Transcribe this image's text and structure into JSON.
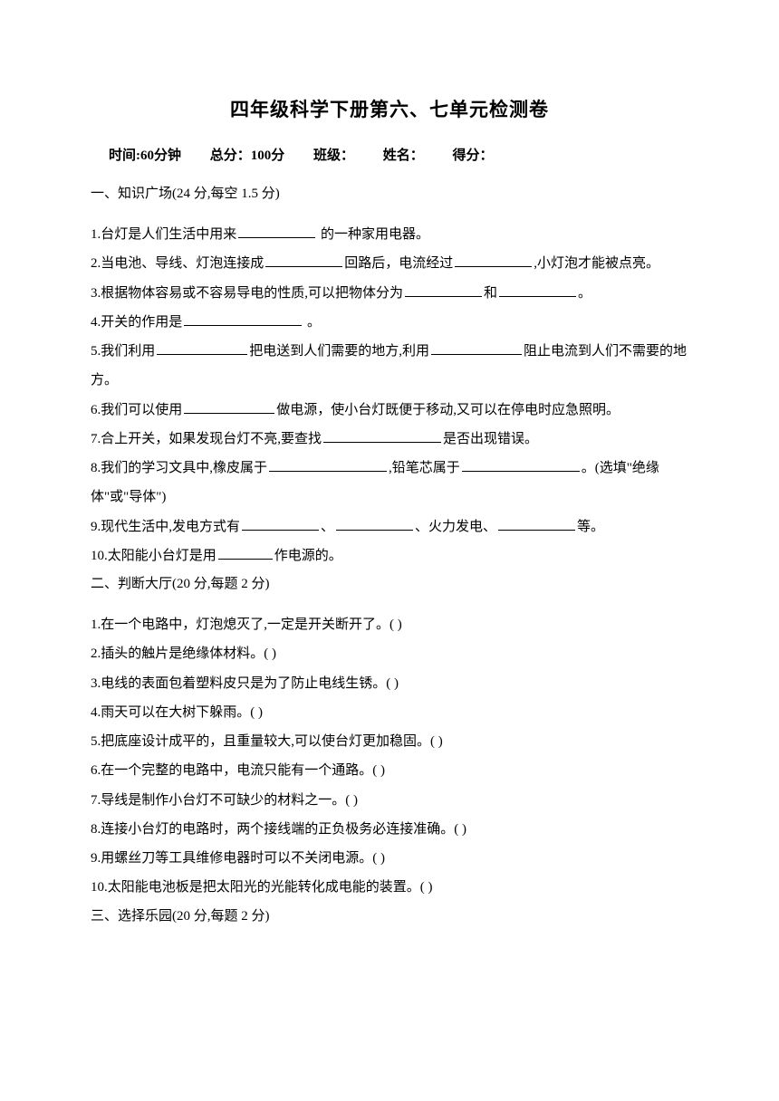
{
  "title": "四年级科学下册第六、七单元检测卷",
  "meta": {
    "time_label": "时间:60分钟",
    "total_label": "总分：100分",
    "class_label": "班级：",
    "name_label": "姓名：",
    "score_label": "得分："
  },
  "section1": {
    "header": "一、知识广场(24 分,每空 1.5 分)",
    "q1_a": "1.台灯是人们生活中用来",
    "q1_b": " 的一种家用电器。",
    "q2_a": "2.当电池、导线、灯泡连接成",
    "q2_b": "回路后，电流经过",
    "q2_c": ",小灯泡才能被点亮。",
    "q3_a": "3.根据物体容易或不容易导电的性质,可以把物体分为",
    "q3_b": "和",
    "q3_c": "。",
    "q4_a": "4.开关的作用是",
    "q4_b": " 。",
    "q5_a": "5.我们利用",
    "q5_b": "把电送到人们需要的地方,利用",
    "q5_c": "阻止电流到人们不需要的地方。",
    "q6_a": "6.我们可以使用",
    "q6_b": "做电源，使小台灯既便于移动,又可以在停电时应急照明。",
    "q7_a": "7.合上开关，如果发现台灯不亮,要查找",
    "q7_b": "是否出现错误。",
    "q8_a": "8.我们的学习文具中,橡皮属于",
    "q8_b": ",铅笔芯属于",
    "q8_c": "。(选填\"绝缘体\"或\"导体\")",
    "q9_a": "9.现代生活中,发电方式有",
    "q9_b": "、",
    "q9_c": "、火力发电、",
    "q9_d": "等。",
    "q10_a": "10.太阳能小台灯是用",
    "q10_b": "作电源的。"
  },
  "section2": {
    "header": "二、判断大厅(20 分,每题 2 分)",
    "q1": "1.在一个电路中，灯泡熄灭了,一定是开关断开了。( )",
    "q2": "2.插头的触片是绝缘体材料。(   )",
    "q3": "3.电线的表面包着塑料皮只是为了防止电线生锈。(    )",
    "q4": "4.雨天可以在大树下躲雨。(    )",
    "q5": "5.把底座设计成平的，且重量较大,可以使台灯更加稳固。(    )",
    "q6": "6.在一个完整的电路中，电流只能有一个通路。(    )",
    "q7": "7.导线是制作小台灯不可缺少的材料之一。(    )",
    "q8": "8.连接小台灯的电路时，两个接线端的正负极务必连接准确。(    )",
    "q9": "9.用螺丝刀等工具维修电器时可以不关闭电源。(    )",
    "q10": "10.太阳能电池板是把太阳光的光能转化成电能的装置。(    )"
  },
  "section3": {
    "header": "三、选择乐园(20 分,每题 2 分)"
  }
}
